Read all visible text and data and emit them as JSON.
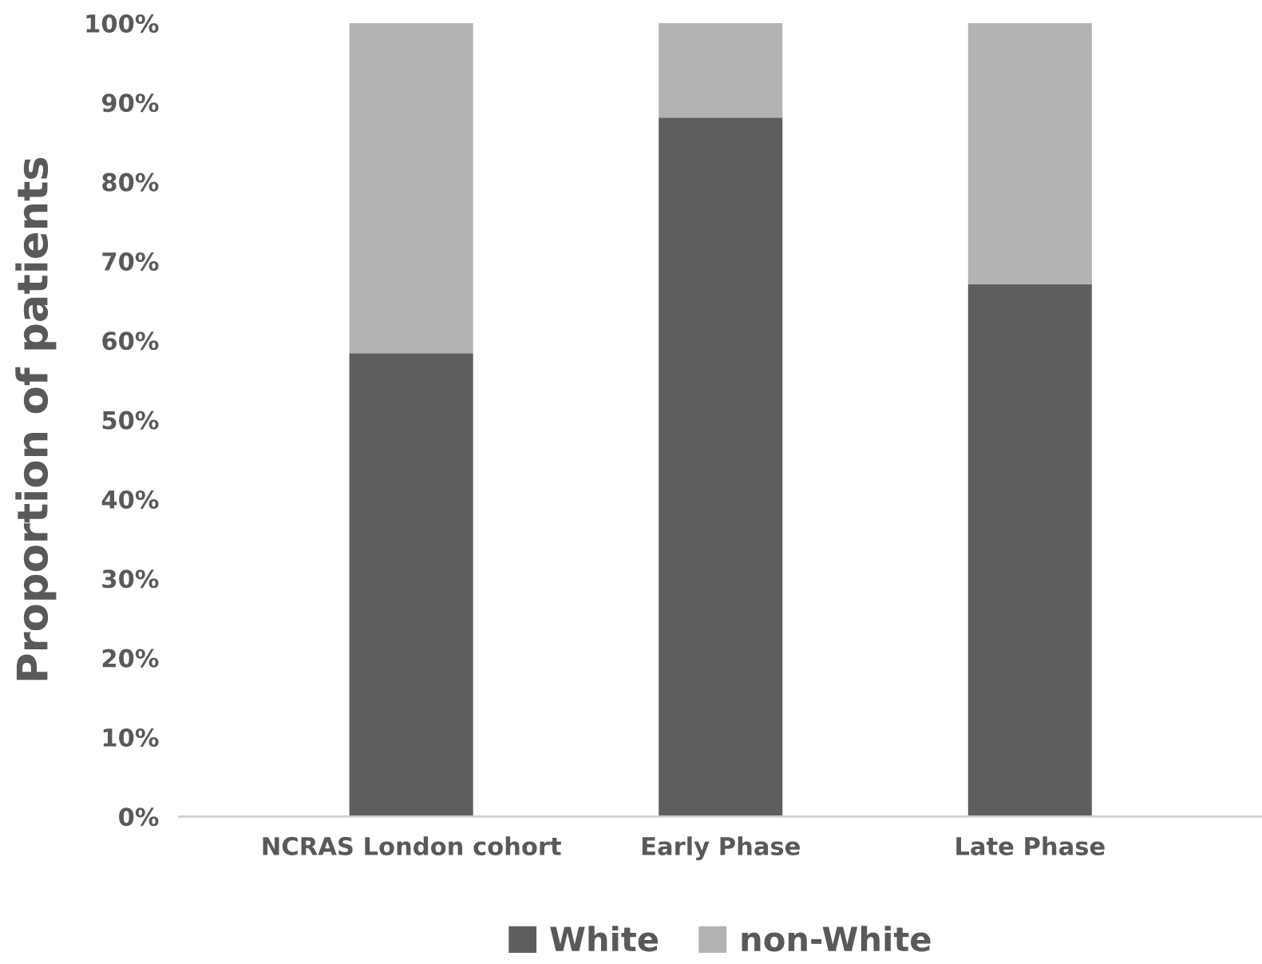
{
  "chart_data": {
    "type": "bar",
    "stacked": true,
    "ylabel": "Proportion of patients",
    "categories": [
      "NCRAS London cohort",
      "Early Phase",
      "Late Phase"
    ],
    "series": [
      {
        "name": "White",
        "color": "#5e5e5e",
        "values": [
          58.4,
          88.1,
          67.1
        ]
      },
      {
        "name": "non-White",
        "color": "#b3b3b3",
        "values": [
          41.6,
          11.9,
          32.9
        ]
      }
    ],
    "ylim": [
      0,
      100
    ],
    "yticks": [
      {
        "value": 0,
        "label": "0%"
      },
      {
        "value": 10,
        "label": "10%"
      },
      {
        "value": 20,
        "label": "20%"
      },
      {
        "value": 30,
        "label": "30%"
      },
      {
        "value": 40,
        "label": "40%"
      },
      {
        "value": 50,
        "label": "50%"
      },
      {
        "value": 60,
        "label": "60%"
      },
      {
        "value": 70,
        "label": "70%"
      },
      {
        "value": 80,
        "label": "80%"
      },
      {
        "value": 90,
        "label": "90%"
      },
      {
        "value": 100,
        "label": "100%"
      }
    ],
    "grid": false,
    "legend": "bottom"
  }
}
